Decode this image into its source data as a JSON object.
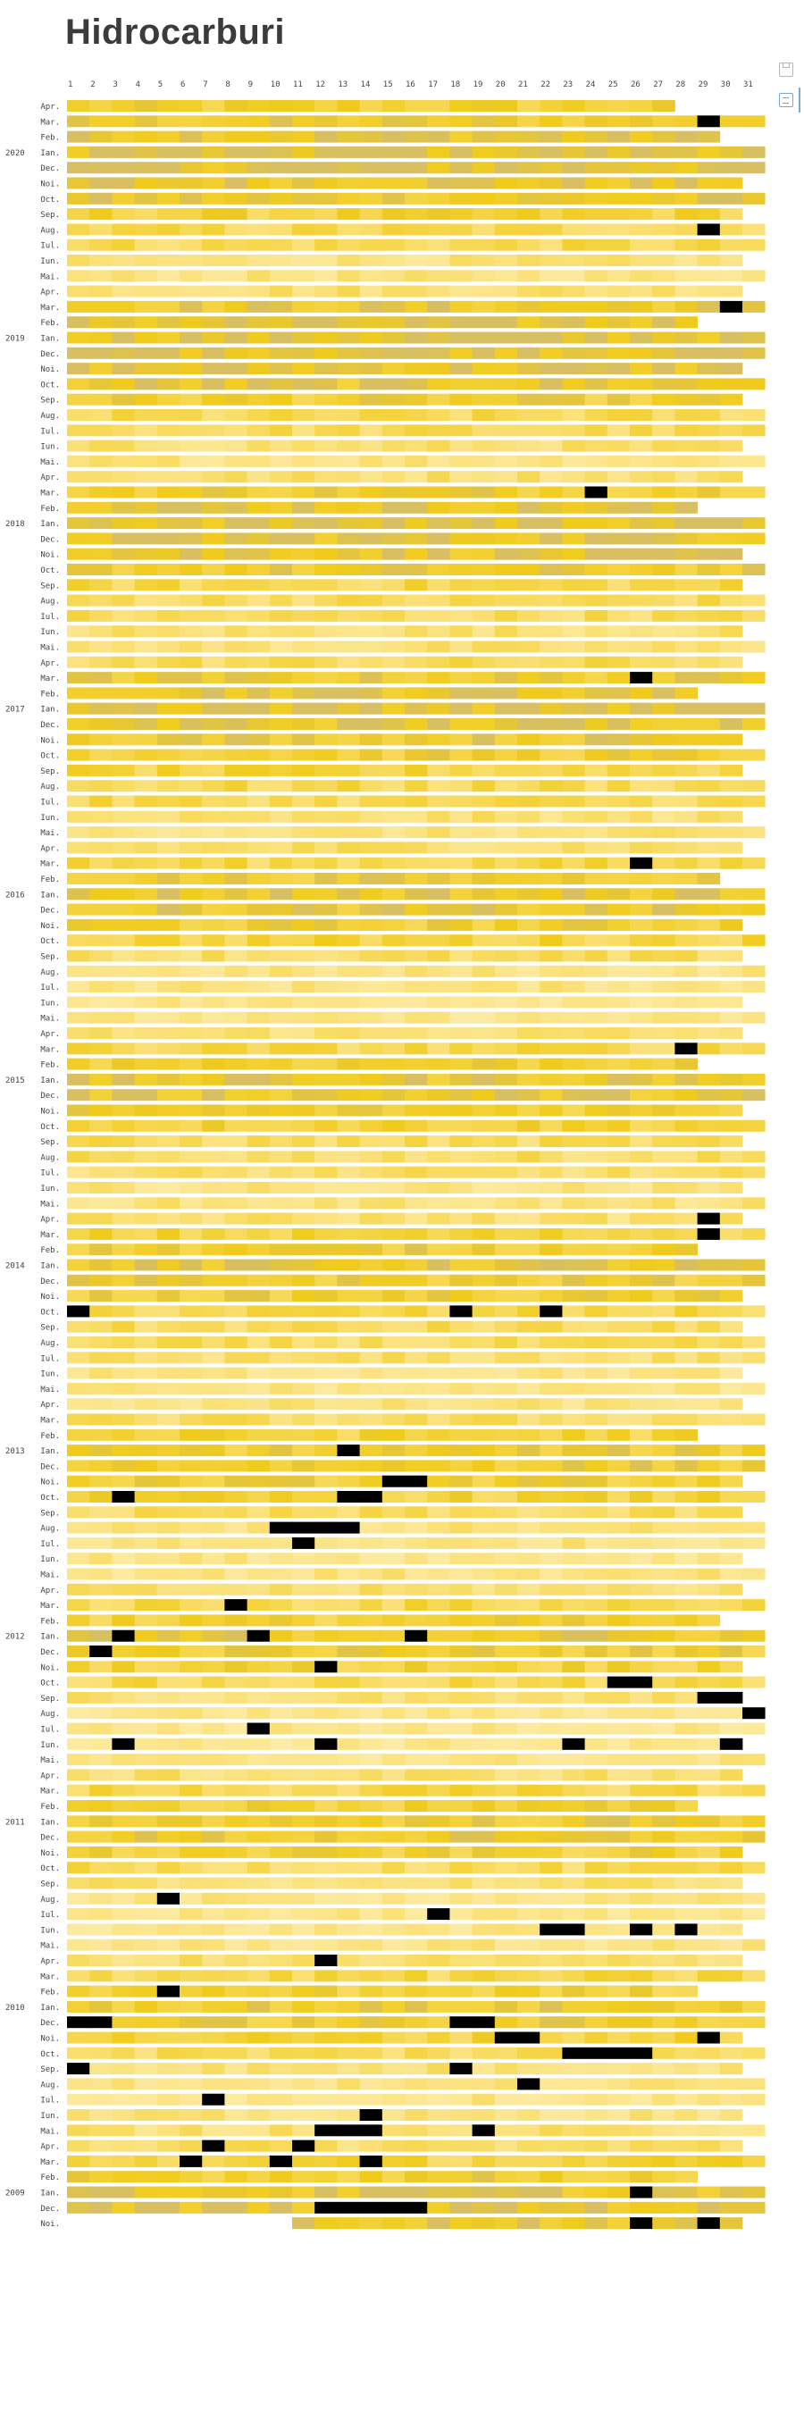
{
  "page": {
    "title": "Hidrocarburi"
  },
  "icons": [
    {
      "name": "save-icon"
    },
    {
      "name": "data-icon"
    }
  ],
  "chart_data": {
    "type": "heatmap",
    "title": "Hidrocarburi",
    "day_labels": [
      "1",
      "2",
      "3",
      "4",
      "5",
      "6",
      "7",
      "8",
      "9",
      "10",
      "11",
      "12",
      "13",
      "14",
      "15",
      "16",
      "17",
      "18",
      "19",
      "20",
      "21",
      "22",
      "23",
      "24",
      "25",
      "26",
      "27",
      "28",
      "29",
      "30",
      "31"
    ],
    "month_labels": [
      "Ian.",
      "Feb.",
      "Mar.",
      "Apr.",
      "Mai.",
      "Iun.",
      "Iul.",
      "Aug.",
      "Sep.",
      "Oct.",
      "Noi.",
      "Dec."
    ],
    "rows_order": "newest first",
    "first_month": [
      2020,
      4
    ],
    "last_month": [
      2008,
      11
    ],
    "gaps": [
      [
        2020,
        4,
        27
      ],
      [
        2008,
        11,
        1
      ]
    ],
    "color_scale": {
      "low": "#fdf3c6",
      "mid": "#fbe17a",
      "high": "#f0cb1c",
      "peak": "#d7bf62",
      "missing": "#000000"
    },
    "row_levels": {
      "2020-04": 0.75,
      "2020-03": 0.82,
      "2020-02": 0.92,
      "2020-01": 0.97,
      "2019-12": 0.96,
      "2019-11": 0.9,
      "2019-10": 0.86,
      "2019-09": 0.72,
      "2019-08": 0.62,
      "2019-07": 0.62,
      "2019-06": 0.45,
      "2019-05": 0.42,
      "2019-04": 0.52,
      "2019-03": 0.85,
      "2019-02": 0.92,
      "2019-01": 0.95,
      "2018-12": 0.97,
      "2018-11": 0.92,
      "2018-10": 0.88,
      "2018-09": 0.78,
      "2018-08": 0.6,
      "2018-07": 0.6,
      "2018-06": 0.5,
      "2018-05": 0.45,
      "2018-04": 0.52,
      "2018-03": 0.82,
      "2018-02": 0.92,
      "2018-01": 0.95,
      "2017-12": 0.93,
      "2017-11": 0.92,
      "2017-10": 0.82,
      "2017-09": 0.65,
      "2017-08": 0.6,
      "2017-07": 0.58,
      "2017-06": 0.5,
      "2017-05": 0.48,
      "2017-04": 0.6,
      "2017-03": 0.82,
      "2017-02": 0.92,
      "2017-01": 0.96,
      "2016-12": 0.9,
      "2016-11": 0.85,
      "2016-10": 0.78,
      "2016-09": 0.68,
      "2016-08": 0.62,
      "2016-07": 0.62,
      "2016-06": 0.48,
      "2016-05": 0.45,
      "2016-04": 0.55,
      "2016-03": 0.65,
      "2016-02": 0.82,
      "2016-01": 0.88,
      "2015-12": 0.85,
      "2015-11": 0.78,
      "2015-10": 0.7,
      "2015-09": 0.55,
      "2015-08": 0.42,
      "2015-07": 0.42,
      "2015-06": 0.4,
      "2015-05": 0.38,
      "2015-04": 0.5,
      "2015-03": 0.65,
      "2015-02": 0.8,
      "2015-01": 0.88,
      "2014-12": 0.88,
      "2014-11": 0.8,
      "2014-10": 0.75,
      "2014-09": 0.58,
      "2014-08": 0.55,
      "2014-07": 0.52,
      "2014-06": 0.42,
      "2014-05": 0.45,
      "2014-04": 0.5,
      "2014-03": 0.7,
      "2014-02": 0.8,
      "2014-01": 0.88,
      "2013-12": 0.8,
      "2013-11": 0.78,
      "2013-10": 0.65,
      "2013-09": 0.58,
      "2013-08": 0.55,
      "2013-07": 0.52,
      "2013-06": 0.4,
      "2013-05": 0.4,
      "2013-04": 0.42,
      "2013-03": 0.55,
      "2013-02": 0.72,
      "2013-01": 0.8,
      "2012-12": 0.82,
      "2012-11": 0.78,
      "2012-10": 0.72,
      "2012-09": 0.55,
      "2012-08": 0.45,
      "2012-07": 0.42,
      "2012-06": 0.4,
      "2012-05": 0.42,
      "2012-04": 0.5,
      "2012-03": 0.65,
      "2012-02": 0.75,
      "2012-01": 0.85,
      "2011-12": 0.8,
      "2011-11": 0.75,
      "2011-10": 0.62,
      "2011-09": 0.48,
      "2011-08": 0.38,
      "2011-07": 0.38,
      "2011-06": 0.35,
      "2011-05": 0.4,
      "2011-04": 0.5,
      "2011-03": 0.65,
      "2011-02": 0.75,
      "2011-01": 0.82,
      "2010-12": 0.82,
      "2010-11": 0.75,
      "2010-10": 0.6,
      "2010-09": 0.48,
      "2010-08": 0.4,
      "2010-07": 0.38,
      "2010-06": 0.38,
      "2010-05": 0.4,
      "2010-04": 0.5,
      "2010-03": 0.65,
      "2010-02": 0.75,
      "2010-01": 0.82,
      "2009-12": 0.8,
      "2009-11": 0.72,
      "2009-10": 0.6,
      "2009-09": 0.48,
      "2009-08": 0.42,
      "2009-07": 0.4,
      "2009-06": 0.42,
      "2009-05": 0.48,
      "2009-04": 0.55,
      "2009-03": 0.7,
      "2009-02": 0.8,
      "2009-01": 0.9,
      "2008-12": 0.92,
      "2008-11": 0.9
    },
    "missing_days": {
      "2020-03": [
        29
      ],
      "2019-08": [
        29
      ],
      "2019-03": [
        30
      ],
      "2018-03": [
        24
      ],
      "2017-03": [
        26
      ],
      "2016-03": [
        26
      ],
      "2015-03": [
        28
      ],
      "2014-04": [
        29
      ],
      "2014-03": [
        29
      ],
      "2013-10": [
        1,
        18,
        22
      ],
      "2013-01": [
        13
      ],
      "2012-11": [
        15,
        16
      ],
      "2012-10": [
        3,
        13,
        14
      ],
      "2012-08": [
        10,
        11,
        12,
        13
      ],
      "2012-07": [
        11
      ],
      "2012-03": [
        8
      ],
      "2012-01": [
        3,
        9,
        16
      ],
      "2011-12": [
        2
      ],
      "2011-11": [
        12
      ],
      "2011-10": [
        25,
        26
      ],
      "2011-09": [
        29,
        30
      ],
      "2011-08": [
        31
      ],
      "2011-07": [
        9
      ],
      "2011-06": [
        3,
        12,
        23,
        30
      ],
      "2010-08": [
        5
      ],
      "2010-07": [
        17
      ],
      "2010-06": [
        22,
        23,
        26,
        28
      ],
      "2010-04": [
        12
      ],
      "2010-02": [
        5
      ],
      "2009-12": [
        1,
        2,
        18,
        19
      ],
      "2009-11": [
        20,
        21,
        29
      ],
      "2009-10": [
        23,
        24,
        25,
        26
      ],
      "2009-09": [
        1,
        18
      ],
      "2009-08": [
        21
      ],
      "2009-07": [
        7
      ],
      "2009-06": [
        14
      ],
      "2009-05": [
        12,
        13,
        14,
        19
      ],
      "2009-04": [
        7,
        11
      ],
      "2009-03": [
        6,
        10,
        14
      ],
      "2009-01": [
        26
      ],
      "2008-12": [
        12,
        13,
        14,
        15,
        16
      ],
      "2008-11": [
        26,
        29
      ]
    }
  }
}
